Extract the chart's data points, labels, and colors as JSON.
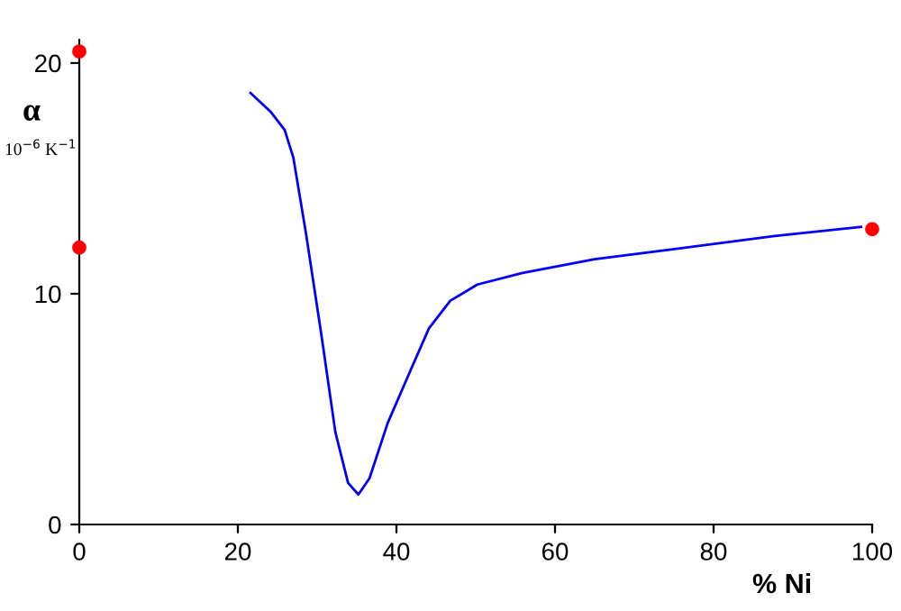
{
  "chart_data": {
    "type": "line",
    "xlabel": "% Ni",
    "ylabel": "α\n10$^{−6}$ K$^{−1}$",
    "xlim": [
      0,
      100
    ],
    "ylim": [
      0,
      21
    ],
    "xticks": [
      0,
      20,
      40,
      60,
      80,
      100
    ],
    "yticks": [
      0,
      10,
      20
    ],
    "grid": false,
    "legend": false,
    "series": [
      {
        "color": "#0000ff",
        "marker": "none",
        "line_style": "solid",
        "x": [
          21.6,
          24.1,
          25.9,
          27.0,
          28.6,
          30.5,
          32.3,
          33.9,
          35.2,
          36.6,
          38.9,
          41.8,
          44.1,
          46.8,
          50.2,
          55.9,
          65.0,
          76.4,
          87.7,
          98.6
        ],
        "values": [
          18.7,
          17.9,
          17.1,
          15.9,
          12.6,
          8.3,
          4.0,
          1.8,
          1.3,
          2.0,
          4.4,
          6.7,
          8.5,
          9.7,
          10.4,
          10.9,
          11.5,
          12.0,
          12.5,
          12.9
        ]
      },
      {
        "type": "scatter",
        "color": "#ff0000",
        "marker": "circle",
        "x": [
          0,
          0,
          100
        ],
        "values": [
          20.5,
          12.0,
          12.8
        ]
      }
    ]
  }
}
